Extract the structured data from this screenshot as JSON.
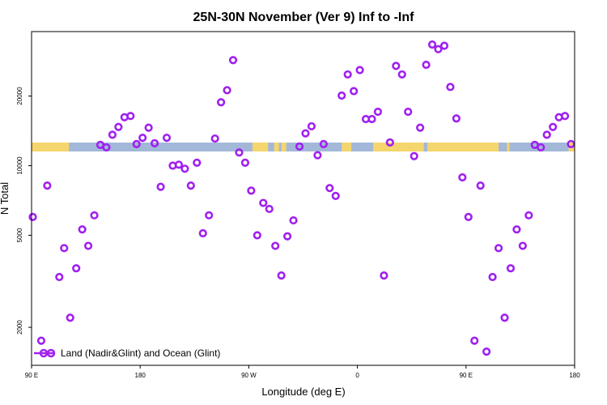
{
  "chart_data": {
    "type": "scatter",
    "title": "25N-30N November (Ver 9)   Inf to -Inf",
    "xlabel": "Longitude (deg E)",
    "ylabel": "N Total",
    "x_ticks": [
      {
        "value": 90,
        "label": "90 E"
      },
      {
        "value": 180,
        "label": "180"
      },
      {
        "value": 270,
        "label": "90 W"
      },
      {
        "value": 360,
        "label": "0"
      },
      {
        "value": 450,
        "label": "90 E"
      },
      {
        "value": 540,
        "label": "180"
      }
    ],
    "y_ticks": [
      2000,
      5000,
      10000,
      20000
    ],
    "xlim": [
      90,
      540
    ],
    "ylim_log": [
      1370,
      38000
    ],
    "y_scale": "log",
    "legend": {
      "label": "Land (Nadir&Glint) and Ocean (Glint)",
      "color": "#a020f0",
      "position": "bottom-left"
    },
    "land_ocean_band": {
      "land_color": "#f5d56e",
      "ocean_color": "#a3b8d8",
      "land_ranges": [
        [
          90,
          121
        ],
        [
          273,
          286
        ],
        [
          291,
          295
        ],
        [
          297,
          301
        ],
        [
          347,
          355
        ],
        [
          373,
          415
        ],
        [
          418,
          477
        ],
        [
          484,
          486
        ],
        [
          535,
          540
        ]
      ]
    },
    "series": [
      {
        "name": "Land (Nadir&Glint) and Ocean (Glint)",
        "color": "#a020f0",
        "x": [
          91,
          98,
          103,
          113,
          117,
          122,
          127,
          132,
          137,
          142,
          147,
          152,
          157,
          162,
          167,
          172,
          177,
          182,
          187,
          192,
          197,
          202,
          207,
          212,
          217,
          222,
          227,
          232,
          237,
          242,
          247,
          252,
          257,
          262,
          267,
          272,
          277,
          282,
          287,
          292,
          297,
          302,
          307,
          312,
          317,
          322,
          327,
          332,
          337,
          342,
          347,
          352,
          357,
          362,
          367,
          372,
          377,
          382,
          387,
          392,
          397,
          402,
          407,
          412,
          417,
          422,
          427,
          432,
          437,
          442,
          447,
          452,
          457,
          462,
          467,
          472,
          477,
          482,
          487,
          492,
          497,
          502,
          507,
          512,
          517,
          522,
          527,
          532,
          537
        ],
        "y": [
          6000,
          1750,
          8200,
          3300,
          4400,
          2200,
          3600,
          5300,
          4500,
          6100,
          12300,
          12000,
          13600,
          14700,
          16200,
          16400,
          12400,
          13200,
          14600,
          12500,
          8100,
          13200,
          10000,
          10100,
          9700,
          8200,
          10300,
          5100,
          6100,
          13100,
          18800,
          21200,
          28600,
          11400,
          10300,
          7800,
          5000,
          6900,
          6500,
          4500,
          3350,
          4950,
          5800,
          12100,
          13800,
          14800,
          11100,
          12400,
          8000,
          7400,
          20100,
          24800,
          21000,
          25900,
          15900,
          15900,
          17100,
          3350,
          12600,
          27000,
          24800,
          17100,
          11000,
          14600,
          27300,
          33400,
          31900,
          33000,
          21900,
          16000,
          8900,
          6000,
          1750,
          8200,
          1570,
          3300,
          4400,
          2200,
          3600,
          5300,
          4500,
          6100,
          12300,
          12000,
          13600,
          14700,
          16200,
          16400,
          12400
        ]
      }
    ]
  }
}
